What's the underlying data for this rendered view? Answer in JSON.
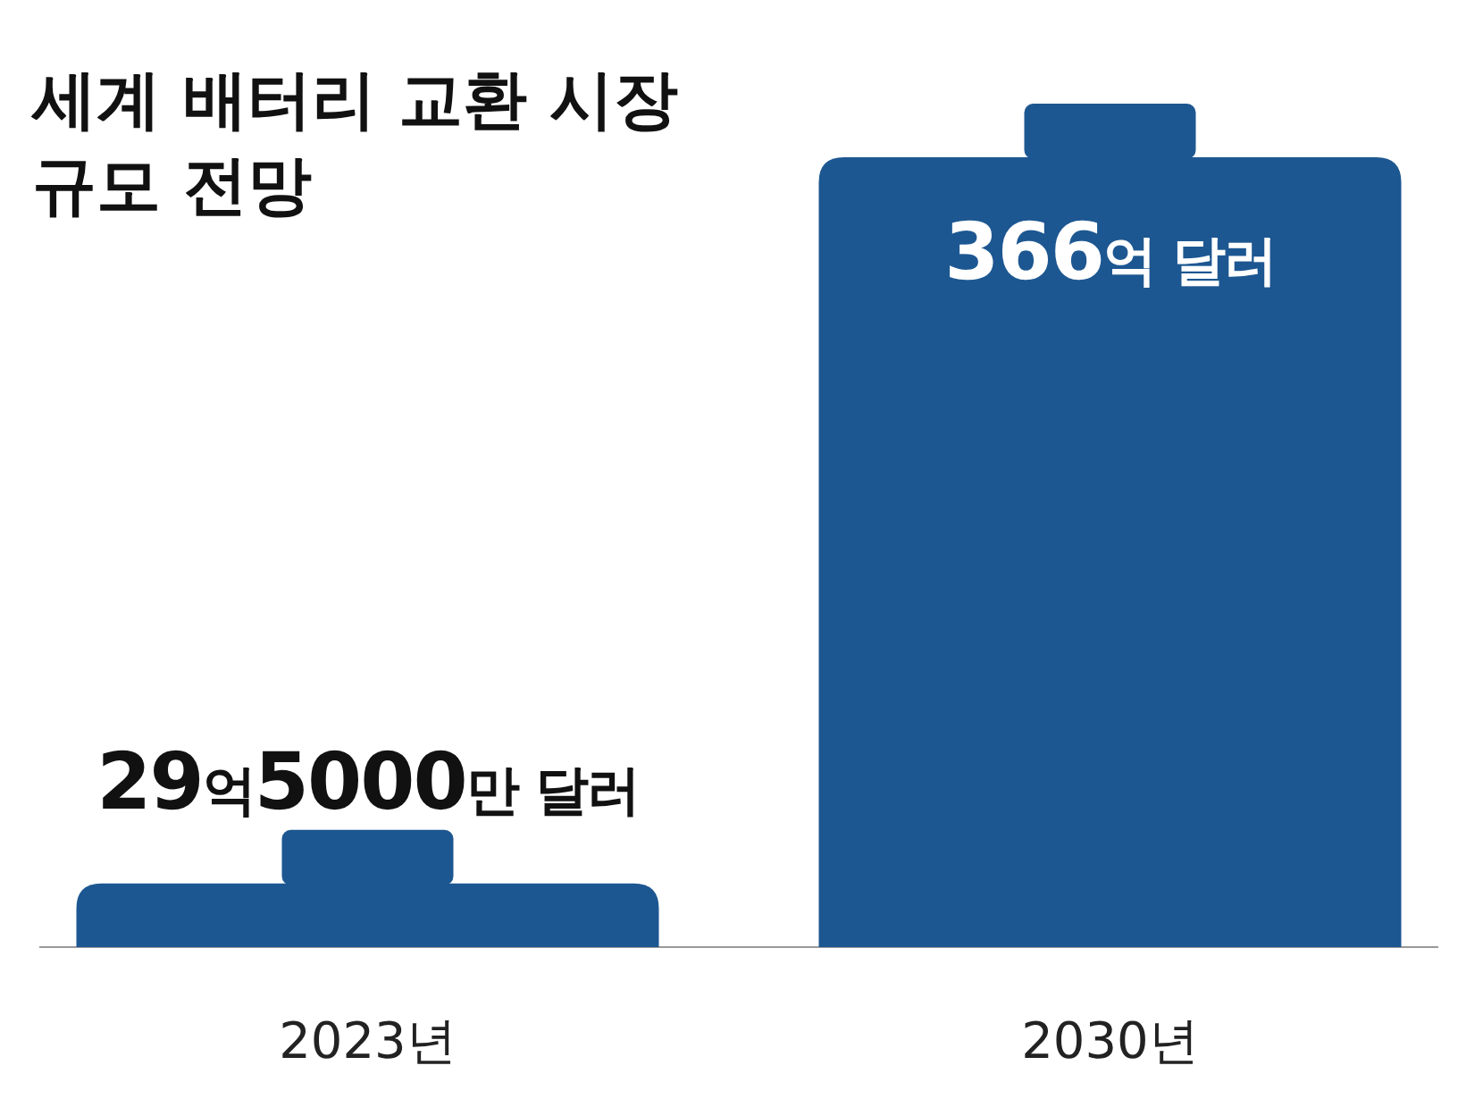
{
  "chart_data": {
    "type": "bar",
    "title": "세계 배터리 교환 시장\n규모 전망",
    "categories": [
      "2023년",
      "2030년"
    ],
    "values": [
      29.5,
      366
    ],
    "value_labels": [
      "29억5000만 달러",
      "366억 달러"
    ],
    "color": "#1d5791"
  }
}
